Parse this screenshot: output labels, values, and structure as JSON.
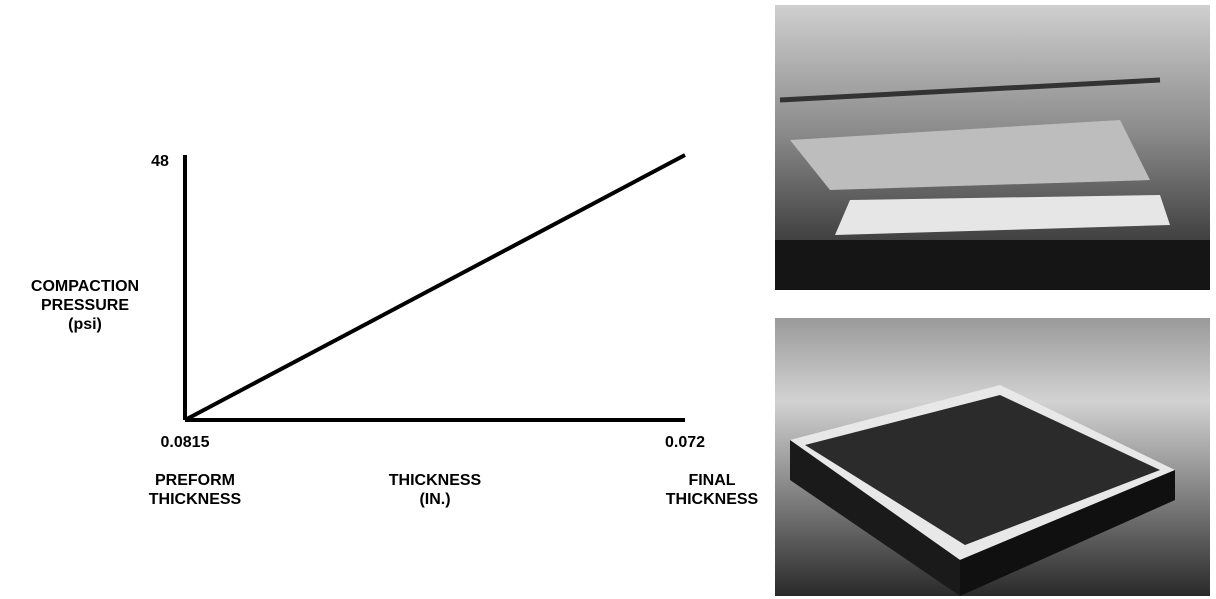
{
  "chart_data": {
    "type": "line",
    "ylabel": [
      "COMPACTION",
      "PRESSURE",
      "(psi)"
    ],
    "xlabel": [
      "THICKNESS",
      "(IN.)"
    ],
    "annotations": [
      {
        "lines": [
          "PREFORM",
          "THICKNESS"
        ]
      },
      {
        "lines": [
          "FINAL",
          "THICKNESS"
        ]
      }
    ],
    "x": [
      0.0815,
      0.072
    ],
    "series": [
      {
        "color": "#000000",
        "values": [
          0,
          48
        ]
      }
    ],
    "xlim": [
      0.0815,
      0.072
    ],
    "xticks": [
      0.0815,
      0.072
    ],
    "ylim": [
      0,
      48
    ],
    "yticks": [
      48
    ],
    "grid": false
  }
}
